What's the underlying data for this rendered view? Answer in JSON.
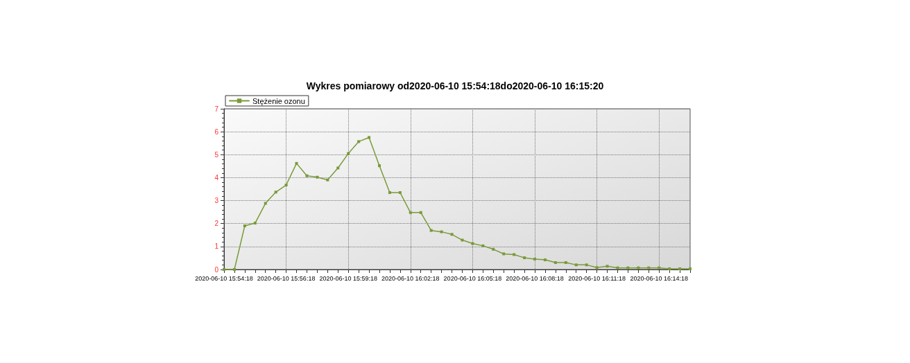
{
  "chart_data": {
    "type": "line",
    "title": "Wykres pomiarowy od2020-06-10 15:54:18do2020-06-10 16:15:20",
    "categories": [
      "2020-06-10 15:54:18",
      null,
      null,
      null,
      null,
      null,
      "2020-06-10 15:56:18",
      null,
      null,
      null,
      null,
      null,
      "2020-06-10 15:59:18",
      null,
      null,
      null,
      null,
      null,
      "2020-06-10 16:02:18",
      null,
      null,
      null,
      null,
      null,
      "2020-06-10 16:05:18",
      null,
      null,
      null,
      null,
      null,
      "2020-06-10 16:08:18",
      null,
      null,
      null,
      null,
      null,
      "2020-06-10 16:11:18",
      null,
      null,
      null,
      null,
      null,
      "2020-06-10 16:14:18",
      null,
      null,
      null
    ],
    "series": [
      {
        "name": "Stężenie ozonu",
        "color": "#7a9a3a",
        "values": [
          0,
          0,
          1.9,
          2.02,
          2.88,
          3.37,
          3.68,
          4.62,
          4.08,
          4.02,
          3.9,
          4.42,
          5.05,
          5.57,
          5.75,
          4.52,
          3.35,
          3.35,
          2.48,
          2.48,
          1.7,
          1.64,
          1.53,
          1.28,
          1.13,
          1.03,
          0.88,
          0.68,
          0.65,
          0.51,
          0.45,
          0.42,
          0.3,
          0.3,
          0.2,
          0.2,
          0.08,
          0.14,
          0.07,
          0.07,
          0.07,
          0.07,
          0.07,
          0.03,
          0.03,
          0.03
        ]
      }
    ],
    "ylim": [
      0,
      7
    ],
    "yticks": [
      0,
      1,
      2,
      3,
      4,
      5,
      6,
      7
    ],
    "grid": true,
    "legend": "top left",
    "marker": "square",
    "line_style": "solid"
  }
}
